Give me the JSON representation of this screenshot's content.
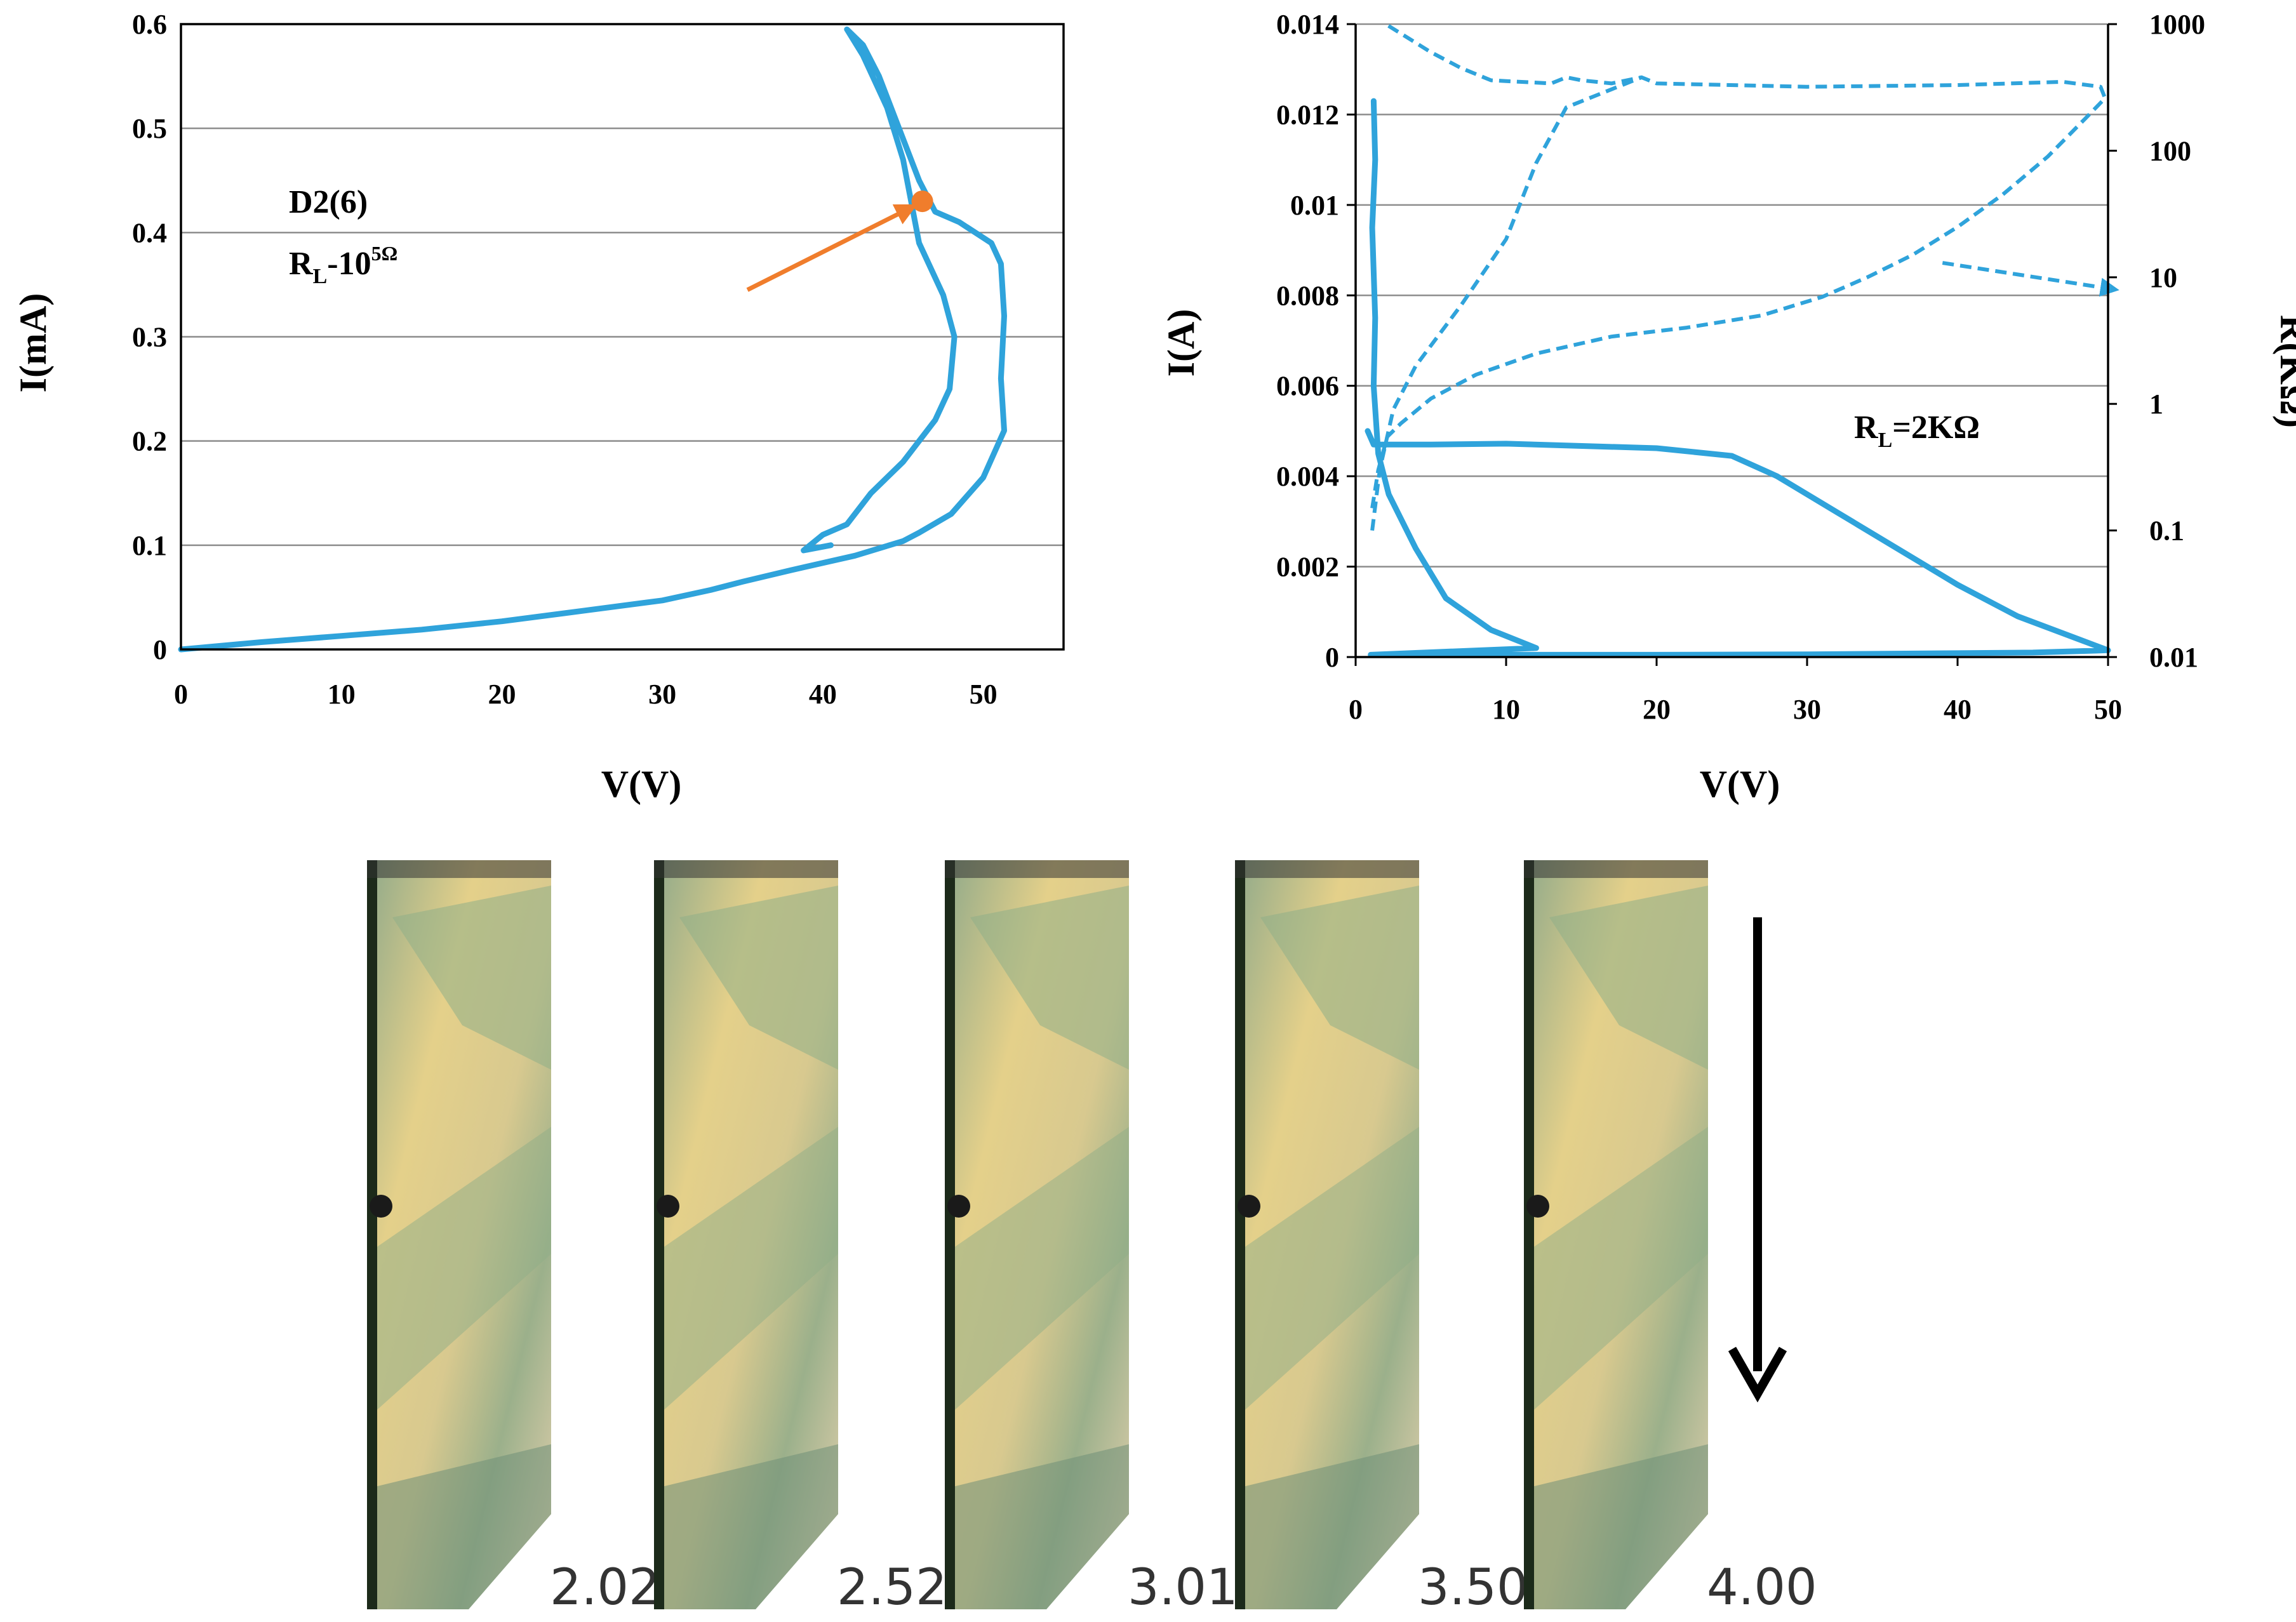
{
  "chart_data": [
    {
      "type": "line",
      "xlabel": "V(V)",
      "ylabel": "I(mA)",
      "xlim": [
        0,
        55
      ],
      "ylim": [
        0,
        0.6
      ],
      "xticks": [
        "0",
        "10",
        "20",
        "30",
        "40",
        "50"
      ],
      "yticks": [
        "0",
        "0.1",
        "0.2",
        "0.3",
        "0.4",
        "0.5",
        "0.6"
      ],
      "grid": true,
      "annotation_title": "D2(6)",
      "annotation_rl_main": "R",
      "annotation_rl_sub": "L",
      "annotation_rl_rest": "-10",
      "annotation_rl_sup": "5Ω",
      "marker_point": [
        46.2,
        0.43
      ],
      "arrow_from": [
        35.3,
        0.345
      ],
      "series": [
        {
          "values": [
            [
              0,
              0
            ],
            [
              5,
              0.007
            ],
            [
              10,
              0.013
            ],
            [
              15,
              0.019
            ],
            [
              20,
              0.027
            ],
            [
              25,
              0.037
            ],
            [
              30,
              0.047
            ],
            [
              33,
              0.057
            ],
            [
              35,
              0.065
            ],
            [
              38,
              0.076
            ],
            [
              42,
              0.09
            ],
            [
              45,
              0.104
            ],
            [
              46,
              0.112
            ],
            [
              48,
              0.13
            ],
            [
              50,
              0.165
            ],
            [
              51.3,
              0.21
            ],
            [
              51.1,
              0.26
            ],
            [
              51.3,
              0.32
            ],
            [
              51.1,
              0.37
            ],
            [
              50.5,
              0.39
            ],
            [
              48.5,
              0.41
            ],
            [
              47,
              0.42
            ],
            [
              46,
              0.45
            ],
            [
              44.5,
              0.51
            ],
            [
              43.5,
              0.55
            ],
            [
              42.5,
              0.58
            ],
            [
              41.5,
              0.595
            ],
            [
              42.5,
              0.57
            ],
            [
              44,
              0.52
            ],
            [
              45,
              0.47
            ],
            [
              45.5,
              0.43
            ],
            [
              46,
              0.39
            ],
            [
              47.5,
              0.34
            ],
            [
              48.2,
              0.3
            ],
            [
              47.9,
              0.25
            ],
            [
              47,
              0.22
            ],
            [
              45,
              0.18
            ],
            [
              43,
              0.15
            ],
            [
              41.5,
              0.12
            ],
            [
              40,
              0.11
            ],
            [
              38.8,
              0.095
            ],
            [
              40.5,
              0.1
            ]
          ]
        }
      ]
    },
    {
      "type": "line",
      "xlabel": "V(V)",
      "ylabel": "I(A)",
      "ylabel_right": "R(KΩ)",
      "xlim": [
        0,
        50
      ],
      "ylim": [
        0,
        0.014
      ],
      "y2lim": [
        0.01,
        1000
      ],
      "y2scale": "log",
      "xticks": [
        "0",
        "10",
        "20",
        "30",
        "40",
        "50"
      ],
      "yticks": [
        "0",
        "0.002",
        "0.004",
        "0.006",
        "0.008",
        "0.01",
        "0.012",
        "0.014"
      ],
      "y2ticks": [
        "0.01",
        "0.1",
        "1",
        "10",
        "100",
        "1000"
      ],
      "grid": true,
      "annotation_rl_main": "R",
      "annotation_rl_sub": "L",
      "annotation_rl_rest": "=2KΩ",
      "series": [
        {
          "axis": "left",
          "values": [
            [
              0.8,
              0.005
            ],
            [
              1.2,
              0.0047
            ],
            [
              5,
              0.0047
            ],
            [
              10,
              0.00472
            ],
            [
              20,
              0.00462
            ],
            [
              25,
              0.00445
            ],
            [
              28,
              0.004
            ],
            [
              32,
              0.0032
            ],
            [
              36,
              0.0024
            ],
            [
              40,
              0.0016
            ],
            [
              44,
              0.0009
            ],
            [
              48,
              0.0004
            ],
            [
              50,
              0.00015
            ],
            [
              45,
              0.0001
            ],
            [
              30,
              6e-05
            ],
            [
              20,
              5e-05
            ],
            [
              10,
              5e-05
            ],
            [
              1,
              5e-05
            ],
            [
              12,
              0.0002
            ],
            [
              9,
              0.0006
            ],
            [
              6,
              0.0013
            ],
            [
              4,
              0.0024
            ],
            [
              2.2,
              0.0036
            ],
            [
              1.5,
              0.0045
            ],
            [
              1.2,
              0.006
            ],
            [
              1.3,
              0.0075
            ],
            [
              1.1,
              0.0095
            ],
            [
              1.3,
              0.011
            ],
            [
              1.2,
              0.0123
            ]
          ]
        },
        {
          "axis": "right",
          "style": "dashed",
          "values": [
            [
              1.1,
              0.15
            ],
            [
              1.5,
              0.3
            ],
            [
              2.1,
              0.55
            ],
            [
              3,
              0.7
            ],
            [
              5,
              1.1
            ],
            [
              8,
              1.7
            ],
            [
              12,
              2.5
            ],
            [
              17,
              3.4
            ],
            [
              22,
              4
            ],
            [
              27,
              5
            ],
            [
              31,
              7
            ],
            [
              34,
              10
            ],
            [
              37,
              15
            ],
            [
              40,
              25
            ],
            [
              43,
              45
            ],
            [
              46,
              90
            ],
            [
              48.5,
              180
            ],
            [
              49.8,
              260
            ],
            [
              49.5,
              320
            ],
            [
              47,
              350
            ],
            [
              40,
              330
            ],
            [
              30,
              320
            ],
            [
              20,
              340
            ],
            [
              19,
              380
            ],
            [
              17,
              340
            ],
            [
              15,
              360
            ],
            [
              14,
              380
            ],
            [
              13,
              340
            ],
            [
              9,
              360
            ],
            [
              7,
              450
            ],
            [
              5,
              600
            ],
            [
              2,
              1000
            ]
          ]
        },
        {
          "axis": "right",
          "style": "dashed",
          "values": [
            [
              1.1,
              0.1
            ],
            [
              1.6,
              0.3
            ],
            [
              2.5,
              0.9
            ],
            [
              4,
              2
            ],
            [
              7,
              6
            ],
            [
              10,
              20
            ],
            [
              12,
              80
            ],
            [
              14,
              220
            ],
            [
              19,
              380
            ]
          ]
        }
      ],
      "legend_arrow_from": [
        39,
        13
      ],
      "legend_arrow_to": [
        50.5,
        8
      ]
    }
  ],
  "frames": [
    {
      "label": "2.02"
    },
    {
      "label": "2.52"
    },
    {
      "label": "3.01"
    },
    {
      "label": "3.50"
    },
    {
      "label": "4.00"
    }
  ]
}
